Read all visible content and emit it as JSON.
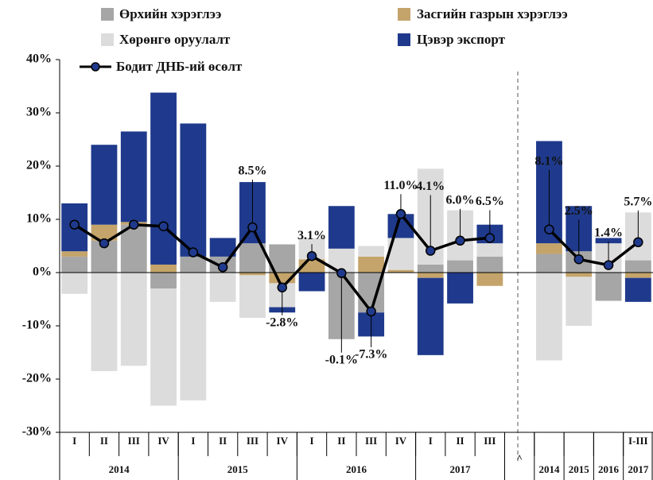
{
  "chart_data": {
    "type": "bar",
    "stacked": true,
    "categories": [
      "I",
      "II",
      "III",
      "IV",
      "I",
      "II",
      "III",
      "IV",
      "I",
      "II",
      "III",
      "IV",
      "I",
      "II",
      "III",
      "^",
      null,
      null,
      null,
      "I-III"
    ],
    "groups": [
      {
        "label": "2014",
        "count": 4
      },
      {
        "label": "2015",
        "count": 4
      },
      {
        "label": "2016",
        "count": 4
      },
      {
        "label": "2017",
        "count": 3
      },
      {
        "label": null,
        "count": 1
      },
      {
        "label": "2014",
        "count": 1
      },
      {
        "label": "2015",
        "count": 1
      },
      {
        "label": "2016",
        "count": 1
      },
      {
        "label": "2017",
        "count": 1
      }
    ],
    "series": [
      {
        "name": "Өрхийн хэрэглээ",
        "color": "#a6a6a6",
        "values": [
          3,
          6,
          9,
          -3,
          3,
          3,
          5.5,
          5.3,
          0,
          -12.5,
          -7.5,
          0,
          1.5,
          2.3,
          3,
          null,
          3.5,
          4,
          -5.3,
          2.3
        ]
      },
      {
        "name": "Засгийн газрын хэрэглээ",
        "color": "#c4a46b",
        "values": [
          1,
          3,
          0.5,
          1.5,
          0,
          0,
          -0.5,
          -2,
          2.5,
          0,
          3,
          0.5,
          -1,
          0,
          -2.5,
          null,
          2,
          -0.8,
          0,
          -1
        ]
      },
      {
        "name": "Хөрөнгө оруулалт",
        "color": "#dcdcdc",
        "values": [
          -4,
          -18.5,
          -17.5,
          -22,
          -24,
          -5.5,
          -8,
          -4.5,
          4,
          4.5,
          2,
          6,
          18,
          9.4,
          2.5,
          null,
          -16.5,
          -9.2,
          5.5,
          9
        ]
      },
      {
        "name": "Цэвэр экспорт",
        "color": "#1f3a8c",
        "values": [
          9,
          15,
          17,
          32.3,
          25,
          3.5,
          11.5,
          -1,
          -3.5,
          8,
          -4.5,
          4.5,
          -14.5,
          -5.8,
          3.5,
          null,
          19.2,
          8.5,
          1,
          -4.5
        ]
      }
    ],
    "line": {
      "name": "Бодит ДНБ-ий өсөлт",
      "color": "#000000",
      "marker_color": "#1f3a8c",
      "values": [
        9.0,
        5.5,
        9.0,
        8.7,
        3.8,
        1.0,
        8.5,
        -2.8,
        3.1,
        -0.1,
        -7.3,
        11.0,
        4.1,
        6.0,
        6.5,
        null,
        8.1,
        2.5,
        1.4,
        5.7
      ],
      "value_labels": [
        null,
        null,
        null,
        null,
        null,
        null,
        "8.5%",
        "-2.8%",
        "3.1%",
        "-0.1%",
        "-7.3%",
        "11.0%",
        "4.1%",
        "6.0%",
        "6.5%",
        null,
        "8.1%",
        "2.5%",
        "1.4%",
        "5.7%"
      ]
    },
    "ylim": [
      -30,
      40
    ],
    "yticks": [
      {
        "value": -30,
        "label": "-30%"
      },
      {
        "value": -20,
        "label": "-20%"
      },
      {
        "value": -10,
        "label": "-10%"
      },
      {
        "value": 0,
        "label": "0%"
      },
      {
        "value": 10,
        "label": "10%"
      },
      {
        "value": 20,
        "label": "20%"
      },
      {
        "value": 30,
        "label": "30%"
      },
      {
        "value": 40,
        "label": "40%"
      }
    ]
  }
}
